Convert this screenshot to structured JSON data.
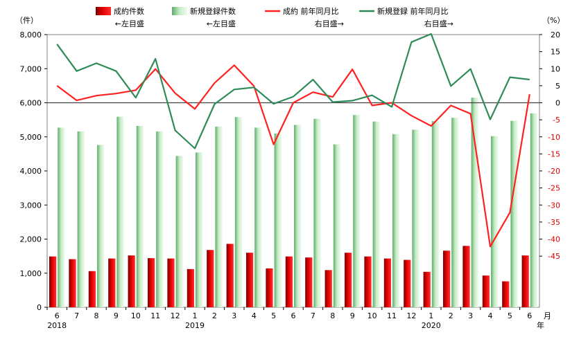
{
  "chart_data": {
    "type": "bar",
    "left_axis": {
      "unit": "（件）",
      "ylim": [
        0,
        8000
      ],
      "ticks": [
        "0",
        "1,000",
        "2,000",
        "3,000",
        "4,000",
        "5,000",
        "6,000",
        "7,000",
        "8,000"
      ]
    },
    "right_axis": {
      "unit": "（%）",
      "ylim": [
        -60,
        20
      ],
      "ticks": [
        "-45",
        "-40",
        "-35",
        "-30",
        "-25",
        "-20",
        "-15",
        "-10",
        "-5",
        "0",
        "5",
        "10",
        "15",
        "20"
      ]
    },
    "x_unit_month": "月",
    "x_unit_year": "年",
    "categories": [
      "6",
      "7",
      "8",
      "9",
      "10",
      "11",
      "12",
      "1",
      "2",
      "3",
      "4",
      "5",
      "6",
      "7",
      "8",
      "9",
      "10",
      "11",
      "12",
      "1",
      "2",
      "3",
      "4",
      "5",
      "6"
    ],
    "year_labels": [
      {
        "index": 0,
        "text": "2018"
      },
      {
        "index": 7,
        "text": "2019"
      },
      {
        "index": 19,
        "text": "2020"
      }
    ],
    "legend": {
      "contracts": [
        "成約件数",
        "←左目盛"
      ],
      "new_listings": [
        "新規登録件数",
        "←左目盛"
      ],
      "contracts_yoy": [
        "成約 前年同月比",
        "右目盛→"
      ],
      "new_listings_yoy": [
        "新規登録 前年同月比",
        "右目盛→"
      ]
    },
    "series": [
      {
        "name": "成約件数",
        "axis": "left",
        "kind": "bar",
        "color": "#e00000",
        "values": [
          1490,
          1410,
          1060,
          1430,
          1520,
          1440,
          1430,
          1120,
          1680,
          1860,
          1600,
          1140,
          1490,
          1460,
          1090,
          1600,
          1490,
          1430,
          1390,
          1040,
          1660,
          1800,
          930,
          760,
          1520
        ]
      },
      {
        "name": "新規登録件数",
        "axis": "left",
        "kind": "bar",
        "color": "#a8d8a8",
        "values": [
          5270,
          5160,
          4760,
          5590,
          5320,
          5160,
          4440,
          4540,
          5300,
          5580,
          5270,
          5100,
          5350,
          5530,
          4780,
          5640,
          5450,
          5080,
          5210,
          5460,
          5560,
          6150,
          5020,
          5470,
          5690
        ]
      },
      {
        "name": "成約 前年同月比",
        "axis": "right",
        "kind": "line",
        "color": "#ff2020",
        "values": [
          5.0,
          0.7,
          2.1,
          2.7,
          3.7,
          9.9,
          2.8,
          -1.8,
          5.8,
          11.0,
          4.9,
          -12.2,
          0.0,
          3.1,
          1.7,
          9.8,
          -0.8,
          0.0,
          -3.8,
          -6.8,
          -0.8,
          -3.2,
          -42.2,
          -32.2,
          2.5
        ]
      },
      {
        "name": "新規登録 前年同月比",
        "axis": "right",
        "kind": "line",
        "color": "#2e8b57",
        "values": [
          17.2,
          9.3,
          11.6,
          9.3,
          1.5,
          12.9,
          -8.1,
          -13.4,
          -0.4,
          3.9,
          4.5,
          -0.3,
          1.8,
          6.8,
          0.2,
          0.6,
          2.2,
          -1.2,
          17.8,
          20.2,
          4.9,
          9.9,
          -4.9,
          7.5,
          6.8
        ]
      }
    ]
  }
}
